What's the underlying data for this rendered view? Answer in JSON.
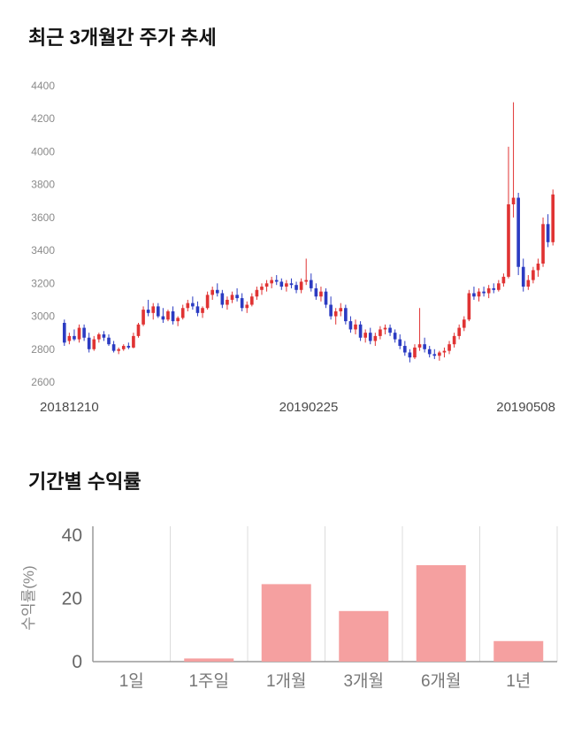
{
  "section_price": {
    "title": "최근 3개월간 주가 추세"
  },
  "section_returns": {
    "title": "기간별 수익률"
  },
  "chart_data": [
    {
      "type": "candlestick",
      "title": "최근 3개월간 주가 추세",
      "ylim": [
        2600,
        4400
      ],
      "yticks": [
        2600,
        2800,
        3000,
        3200,
        3400,
        3600,
        3800,
        4000,
        4200,
        4400
      ],
      "xticklabels": [
        "20181210",
        "20190225",
        "20190508"
      ],
      "up_color": "#e03333",
      "down_color": "#2b3bc2",
      "candles": [
        [
          2960,
          2980,
          2820,
          2840
        ],
        [
          2850,
          2900,
          2830,
          2880
        ],
        [
          2880,
          2920,
          2850,
          2860
        ],
        [
          2860,
          2950,
          2840,
          2930
        ],
        [
          2930,
          2950,
          2850,
          2870
        ],
        [
          2870,
          2900,
          2780,
          2800
        ],
        [
          2800,
          2880,
          2790,
          2860
        ],
        [
          2860,
          2900,
          2840,
          2890
        ],
        [
          2890,
          2910,
          2850,
          2870
        ],
        [
          2870,
          2890,
          2820,
          2830
        ],
        [
          2830,
          2850,
          2780,
          2790
        ],
        [
          2790,
          2810,
          2770,
          2800
        ],
        [
          2800,
          2830,
          2790,
          2820
        ],
        [
          2820,
          2840,
          2800,
          2810
        ],
        [
          2810,
          2900,
          2805,
          2880
        ],
        [
          2880,
          2960,
          2870,
          2950
        ],
        [
          2950,
          3060,
          2940,
          3040
        ],
        [
          3040,
          3100,
          3000,
          3020
        ],
        [
          3020,
          3080,
          2980,
          3060
        ],
        [
          3060,
          3080,
          2990,
          3000
        ],
        [
          3000,
          3050,
          2960,
          2980
        ],
        [
          2980,
          3040,
          2970,
          3030
        ],
        [
          3030,
          3060,
          2950,
          2970
        ],
        [
          2970,
          3000,
          2940,
          2990
        ],
        [
          2990,
          3070,
          2980,
          3050
        ],
        [
          3050,
          3100,
          3030,
          3080
        ],
        [
          3080,
          3120,
          3040,
          3060
        ],
        [
          3060,
          3090,
          3000,
          3020
        ],
        [
          3020,
          3060,
          2990,
          3050
        ],
        [
          3050,
          3150,
          3040,
          3130
        ],
        [
          3130,
          3180,
          3100,
          3160
        ],
        [
          3160,
          3200,
          3120,
          3140
        ],
        [
          3140,
          3160,
          3050,
          3070
        ],
        [
          3070,
          3120,
          3040,
          3100
        ],
        [
          3100,
          3150,
          3080,
          3130
        ],
        [
          3130,
          3170,
          3090,
          3110
        ],
        [
          3110,
          3140,
          3030,
          3050
        ],
        [
          3050,
          3090,
          3020,
          3070
        ],
        [
          3070,
          3140,
          3060,
          3120
        ],
        [
          3120,
          3180,
          3100,
          3160
        ],
        [
          3160,
          3200,
          3130,
          3180
        ],
        [
          3180,
          3220,
          3150,
          3200
        ],
        [
          3200,
          3240,
          3170,
          3220
        ],
        [
          3220,
          3250,
          3190,
          3210
        ],
        [
          3210,
          3230,
          3160,
          3180
        ],
        [
          3180,
          3220,
          3150,
          3200
        ],
        [
          3200,
          3230,
          3170,
          3190
        ],
        [
          3190,
          3210,
          3140,
          3160
        ],
        [
          3160,
          3230,
          3140,
          3210
        ],
        [
          3210,
          3350,
          3190,
          3220
        ],
        [
          3220,
          3260,
          3150,
          3170
        ],
        [
          3170,
          3200,
          3100,
          3120
        ],
        [
          3120,
          3180,
          3090,
          3150
        ],
        [
          3150,
          3170,
          3050,
          3070
        ],
        [
          3070,
          3120,
          2980,
          3000
        ],
        [
          3000,
          3050,
          2950,
          3030
        ],
        [
          3030,
          3080,
          3000,
          3050
        ],
        [
          3050,
          3070,
          2950,
          2970
        ],
        [
          2970,
          3000,
          2900,
          2920
        ],
        [
          2920,
          2980,
          2890,
          2950
        ],
        [
          2950,
          2970,
          2850,
          2870
        ],
        [
          2870,
          2920,
          2840,
          2900
        ],
        [
          2900,
          2930,
          2830,
          2850
        ],
        [
          2850,
          2900,
          2820,
          2880
        ],
        [
          2880,
          2940,
          2860,
          2920
        ],
        [
          2920,
          2950,
          2890,
          2930
        ],
        [
          2930,
          2950,
          2880,
          2900
        ],
        [
          2900,
          2920,
          2840,
          2860
        ],
        [
          2860,
          2890,
          2800,
          2820
        ],
        [
          2820,
          2850,
          2760,
          2780
        ],
        [
          2780,
          2800,
          2720,
          2750
        ],
        [
          2750,
          2830,
          2740,
          2810
        ],
        [
          2810,
          3050,
          2790,
          2830
        ],
        [
          2830,
          2870,
          2780,
          2800
        ],
        [
          2800,
          2820,
          2750,
          2770
        ],
        [
          2770,
          2800,
          2740,
          2760
        ],
        [
          2760,
          2790,
          2730,
          2780
        ],
        [
          2780,
          2810,
          2750,
          2790
        ],
        [
          2790,
          2850,
          2770,
          2830
        ],
        [
          2830,
          2900,
          2810,
          2880
        ],
        [
          2880,
          2950,
          2860,
          2930
        ],
        [
          2930,
          3000,
          2910,
          2980
        ],
        [
          2980,
          3160,
          2970,
          3140
        ],
        [
          3140,
          3180,
          3100,
          3120
        ],
        [
          3120,
          3170,
          3090,
          3150
        ],
        [
          3150,
          3180,
          3120,
          3140
        ],
        [
          3140,
          3190,
          3110,
          3170
        ],
        [
          3170,
          3200,
          3140,
          3160
        ],
        [
          3160,
          3220,
          3150,
          3200
        ],
        [
          3200,
          3260,
          3180,
          3240
        ],
        [
          3240,
          4030,
          3230,
          3680
        ],
        [
          3680,
          4300,
          3600,
          3720
        ],
        [
          3720,
          3750,
          3250,
          3300
        ],
        [
          3300,
          3350,
          3150,
          3180
        ],
        [
          3180,
          3250,
          3160,
          3220
        ],
        [
          3220,
          3300,
          3200,
          3280
        ],
        [
          3280,
          3350,
          3240,
          3320
        ],
        [
          3320,
          3600,
          3300,
          3560
        ],
        [
          3560,
          3620,
          3420,
          3450
        ],
        [
          3450,
          3770,
          3430,
          3740
        ]
      ]
    },
    {
      "type": "bar",
      "title": "기간별 수익률",
      "categories": [
        "1일",
        "1주일",
        "1개월",
        "3개월",
        "6개월",
        "1년"
      ],
      "values": [
        0,
        1,
        24.5,
        16,
        30.5,
        6.5
      ],
      "ylabel": "수익률(%)",
      "yticks": [
        0,
        20,
        40
      ],
      "ylim": [
        0,
        40
      ],
      "bar_color": "#f5a0a0",
      "grid": "vertical-separators",
      "legend": "none"
    }
  ]
}
